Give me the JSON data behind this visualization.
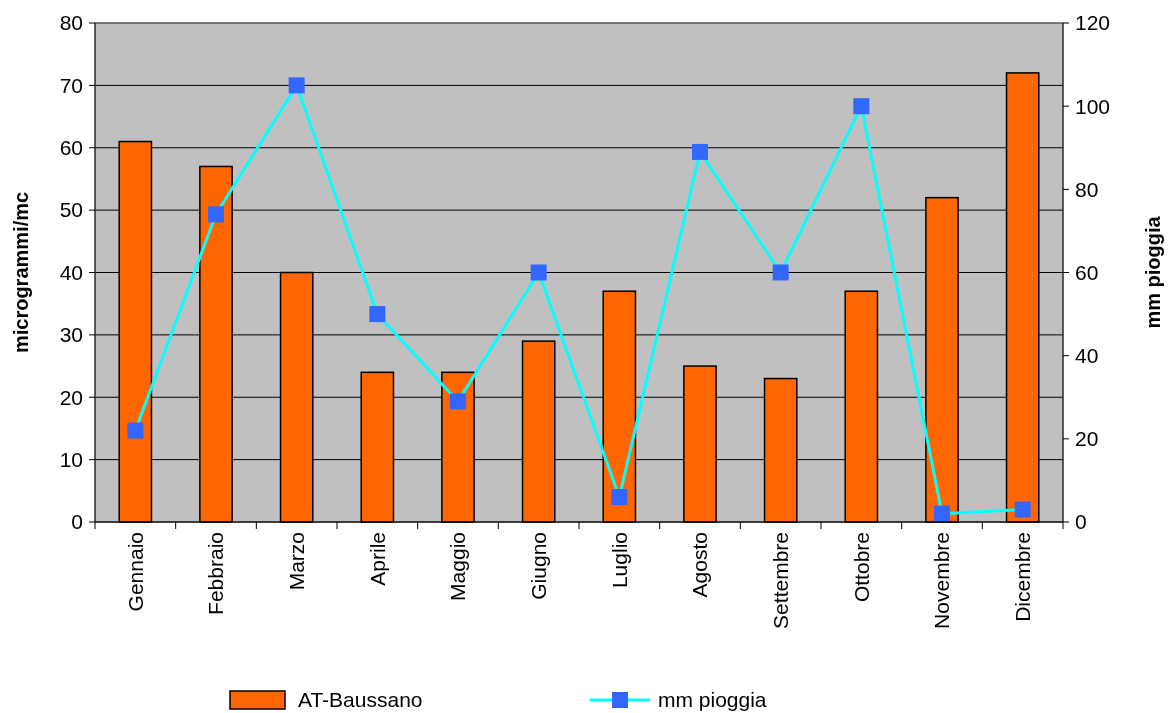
{
  "chart_data": {
    "type": "bar",
    "categories": [
      "Gennaio",
      "Febbraio",
      "Marzo",
      "Aprile",
      "Maggio",
      "Giugno",
      "Luglio",
      "Agosto",
      "Settembre",
      "Ottobre",
      "Novembre",
      "Dicembre"
    ],
    "series": [
      {
        "name": "AT-Baussano",
        "color": "#ff6600",
        "values": [
          61,
          57,
          40,
          24,
          24,
          29,
          37,
          25,
          23,
          37,
          52,
          72
        ]
      },
      {
        "name": "mm pioggia",
        "type": "line",
        "axis": "y2",
        "color": "#00ffff",
        "marker": "square",
        "values": [
          22,
          74,
          105,
          50,
          29,
          60,
          6,
          89,
          60,
          100,
          2,
          3
        ]
      }
    ],
    "ylabel": "microgrammi/mc",
    "y2label": "mm pioggia",
    "ylim": [
      0,
      80
    ],
    "yticks": [
      0,
      10,
      20,
      30,
      40,
      50,
      60,
      70,
      80
    ],
    "y2lim": [
      0,
      120
    ],
    "y2ticks": [
      0,
      20,
      40,
      60,
      80,
      100,
      120
    ],
    "grid": "y",
    "legend": "bottom"
  }
}
